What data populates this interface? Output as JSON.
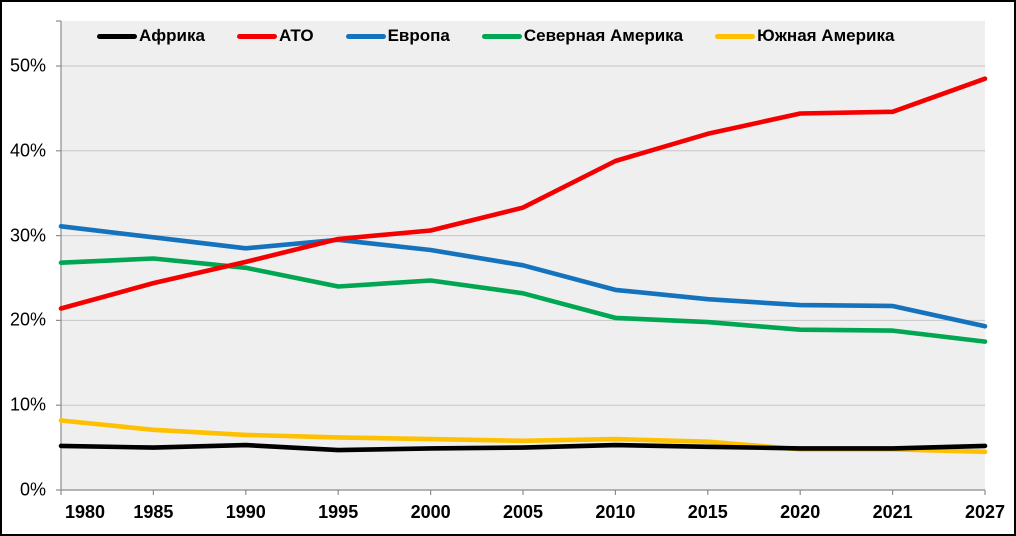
{
  "chart_data": {
    "type": "line",
    "title": "",
    "categories": [
      "1980",
      "1985",
      "1990",
      "1995",
      "2000",
      "2005",
      "2010",
      "2015",
      "2020",
      "2021",
      "2027"
    ],
    "series": [
      {
        "name": "Африка",
        "color": "#000000",
        "values": [
          5.2,
          5.0,
          5.3,
          4.7,
          4.9,
          5.0,
          5.3,
          5.1,
          4.9,
          4.9,
          5.2
        ]
      },
      {
        "name": "АТО",
        "color": "#f40000",
        "values": [
          21.4,
          24.4,
          26.9,
          29.6,
          30.6,
          33.3,
          38.8,
          42.0,
          44.4,
          44.6,
          48.5
        ]
      },
      {
        "name": "Европа",
        "color": "#1573be",
        "values": [
          31.1,
          29.8,
          28.5,
          29.5,
          28.3,
          26.5,
          23.6,
          22.5,
          21.8,
          21.7,
          19.3
        ]
      },
      {
        "name": "Северная Америка",
        "color": "#00a651",
        "values": [
          26.8,
          27.3,
          26.2,
          24.0,
          24.7,
          23.2,
          20.3,
          19.8,
          18.9,
          18.8,
          17.5
        ]
      },
      {
        "name": "Южная Америка",
        "color": "#ffc000",
        "values": [
          8.2,
          7.1,
          6.5,
          6.2,
          6.0,
          5.8,
          6.0,
          5.7,
          4.8,
          4.8,
          4.5
        ]
      }
    ],
    "xlabel": "",
    "ylabel": "",
    "ytick_labels": [
      "0%",
      "10%",
      "20%",
      "30%",
      "40%",
      "50%"
    ],
    "ylim": [
      0,
      55
    ],
    "grid": true,
    "legend_position": "top-inside"
  },
  "colors": {
    "plot_background": "#efefef",
    "gridline": "#c6c6c6",
    "axis": "#8c8c8c",
    "outer_border": "#000000",
    "text": "#000000"
  }
}
